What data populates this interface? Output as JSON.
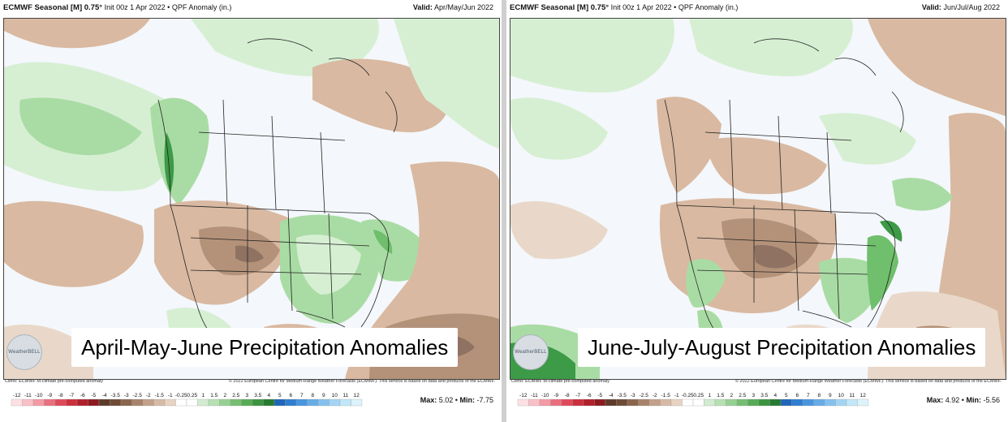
{
  "panels": [
    {
      "header": {
        "model": "ECMWF Seasonal [M] 0.75°",
        "init": "Init 00z 1 Apr 2022",
        "sep": "•",
        "field": "QPF Anomaly (in.)",
        "valid_label": "Valid:",
        "valid_value": "Apr/May/Jun 2022"
      },
      "caption": "April-May-June Precipitation Anomalies",
      "logo": "WeatherBELL",
      "climo": "Climo: ECMWF M-climate pre-computed anomaly",
      "copyright": "© 2022 European Centre for Medium-Range Weather Forecasts (ECMWF). This service is based on data and products of the ECMWF.",
      "max_label": "Max:",
      "max_value": "5.02",
      "min_label": "Min:",
      "min_value": "-7.75",
      "bullet": "•"
    },
    {
      "header": {
        "model": "ECMWF Seasonal [M] 0.75°",
        "init": "Init 00z 1 Apr 2022",
        "sep": "•",
        "field": "QPF Anomaly (in.)",
        "valid_label": "Valid:",
        "valid_value": "Jun/Jul/Aug 2022"
      },
      "caption": "June-July-August Precipitation Anomalies",
      "logo": "WeatherBELL",
      "climo": "Climo: ECMWF M-climate pre-computed anomaly",
      "copyright": "© 2022 European Centre for Medium-Range Weather Forecasts (ECMWF). This service is based on data and products of the ECMWF.",
      "max_label": "Max:",
      "max_value": "4.92",
      "min_label": "Min:",
      "min_value": "-5.56",
      "bullet": "•"
    }
  ],
  "legend": {
    "ticks": [
      "-12",
      "-11",
      "-10",
      "-9",
      "-8",
      "-7",
      "-6",
      "-5",
      "-4",
      "-3.5",
      "-3",
      "-2.5",
      "-2",
      "-1.5",
      "-1",
      "-0.25",
      "0.25",
      "1",
      "1.5",
      "2",
      "2.5",
      "3",
      "3.5",
      "4",
      "5",
      "6",
      "7",
      "8",
      "9",
      "10",
      "11",
      "12"
    ],
    "colors": [
      "#fde0e4",
      "#f9c0c8",
      "#f39aa5",
      "#ea6f7e",
      "#df4a5b",
      "#cc2f3c",
      "#b0202a",
      "#8c1a20",
      "#5d3b2a",
      "#6e4b36",
      "#8a654c",
      "#a8826a",
      "#c3a08a",
      "#d7baa6",
      "#e8d3c3",
      "#ffffff",
      "#ffffff",
      "#d3ecd1",
      "#b7e0b3",
      "#97d093",
      "#76be72",
      "#58ab55",
      "#3d9440",
      "#267b30",
      "#1f66b8",
      "#2f7ed0",
      "#4a96de",
      "#67ace7",
      "#85c1ee",
      "#a3d5f3",
      "#c2e7f8",
      "#ddf3fb"
    ]
  },
  "colors": {
    "ocean": "#f4f7fb",
    "dry_light": "#e9d8c9",
    "dry": "#d9b9a1",
    "dry_dark": "#b4927a",
    "dry_deep": "#8f7262",
    "wet_light": "#d6efd3",
    "wet": "#a9dca4",
    "wet_dark": "#6fbf6c",
    "wet_deep": "#3d9a47",
    "extreme_dry": "#d42a32"
  }
}
